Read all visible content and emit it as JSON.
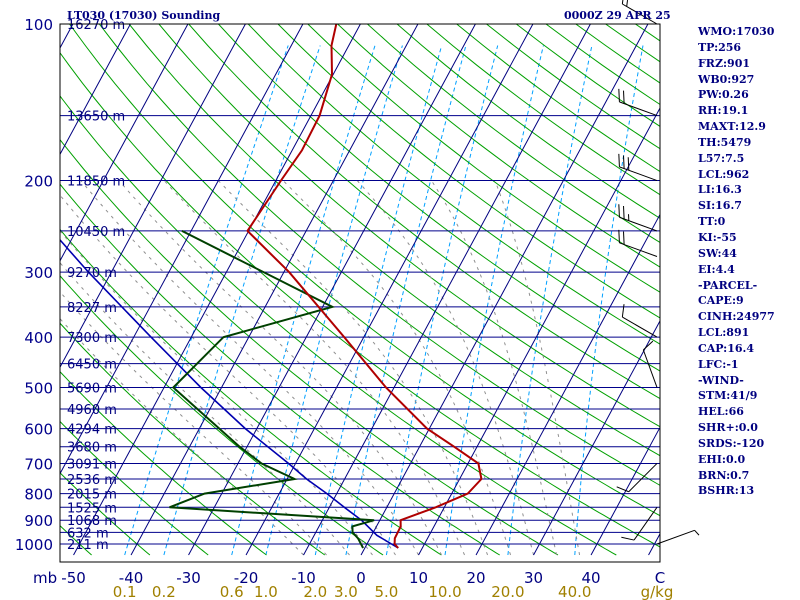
{
  "header": {
    "station": "LT030 (17030) Sounding",
    "time": "0000Z 29 APR 25"
  },
  "indices": [
    "WMO:17030",
    "TP:256",
    "FRZ:901",
    "WB0:927",
    "PW:0.26",
    "RH:19.1",
    "MAXT:12.9",
    "TH:5479",
    "L57:7.5",
    "LCL:962",
    "LI:16.3",
    "SI:16.7",
    "TT:0",
    "KI:-55",
    "SW:44",
    "EI:4.4",
    "-PARCEL-",
    "CAPE:9",
    "CINH:24977",
    "LCL:891",
    "CAP:16.4",
    "LFC:-1",
    "-WIND-",
    "STM:41/9",
    "HEL:66",
    "SHR+:0.0",
    "SRDS:-120",
    "EHI:0.0",
    "BRN:0.7",
    "BSHR:13"
  ],
  "colors": {
    "background": "#ffffff",
    "frame": "#000000",
    "isobar": "#00008b",
    "isotherm": "#000080",
    "dry_adiabat": "#00a000",
    "moist_adiabat": "#909090",
    "mixing_ratio": "#00a0ff",
    "temperature": "#b00000",
    "dewpoint": "#004000",
    "parcel": "#0000b0",
    "pressure_labels": "#00008b",
    "height_labels": "#000080",
    "temp_labels": "#000080",
    "mixing_labels": "#a08000",
    "wind_barbs": "#000000",
    "indices_text": "#000080"
  },
  "chart_data": {
    "type": "skew-t",
    "pressure_unit": "mb",
    "pressure_levels": [
      100,
      200,
      300,
      400,
      500,
      600,
      700,
      800,
      900,
      1000
    ],
    "pressure_range": [
      100,
      1050
    ],
    "temperature_ticks": [
      -50,
      -40,
      -30,
      -20,
      -10,
      0,
      10,
      20,
      30,
      40
    ],
    "temperature_end_label": "C",
    "mixing_ratio_unit": "g/kg",
    "mixing_ratio_ticks": [
      "0.1",
      "0.2",
      "0.6",
      "1.0",
      "2.0",
      "3.0",
      "5.0",
      "10.0",
      "20.0",
      "40.0"
    ],
    "height_labels": [
      {
        "p": 100,
        "label": "16270 m"
      },
      {
        "p": 150,
        "label": "13650 m"
      },
      {
        "p": 200,
        "label": "11850 m"
      },
      {
        "p": 250,
        "label": "10450 m"
      },
      {
        "p": 300,
        "label": "9270 m"
      },
      {
        "p": 350,
        "label": "8227 m"
      },
      {
        "p": 400,
        "label": "7300 m"
      },
      {
        "p": 450,
        "label": "6450 m"
      },
      {
        "p": 500,
        "label": "5690 m"
      },
      {
        "p": 550,
        "label": "4960 m"
      },
      {
        "p": 600,
        "label": "4294 m"
      },
      {
        "p": 650,
        "label": "3680 m"
      },
      {
        "p": 700,
        "label": "3091 m"
      },
      {
        "p": 750,
        "label": "2536 m"
      },
      {
        "p": 800,
        "label": "2015 m"
      },
      {
        "p": 850,
        "label": "1525 m"
      },
      {
        "p": 900,
        "label": "1068 m"
      },
      {
        "p": 950,
        "label": "632 m"
      },
      {
        "p": 1000,
        "label": "211 m"
      }
    ],
    "temperature_profile": [
      {
        "p": 1018,
        "t": 5.8
      },
      {
        "p": 1000,
        "t": 4.8
      },
      {
        "p": 975,
        "t": 4.3
      },
      {
        "p": 925,
        "t": 4.2
      },
      {
        "p": 900,
        "t": 3.6
      },
      {
        "p": 850,
        "t": 8.5
      },
      {
        "p": 800,
        "t": 12.8
      },
      {
        "p": 750,
        "t": 13.8
      },
      {
        "p": 700,
        "t": 11.8
      },
      {
        "p": 650,
        "t": 6.0
      },
      {
        "p": 600,
        "t": -0.4
      },
      {
        "p": 500,
        "t": -11.4
      },
      {
        "p": 400,
        "t": -23.4
      },
      {
        "p": 300,
        "t": -39.1
      },
      {
        "p": 250,
        "t": -50.2
      },
      {
        "p": 200,
        "t": -49.1
      },
      {
        "p": 175,
        "t": -48.3
      },
      {
        "p": 150,
        "t": -48.5
      },
      {
        "p": 125,
        "t": -50.2
      },
      {
        "p": 110,
        "t": -53.0
      },
      {
        "p": 100,
        "t": -54.2
      }
    ],
    "dewpoint_profile": [
      {
        "p": 1018,
        "t": -0.3
      },
      {
        "p": 975,
        "t": -2.1
      },
      {
        "p": 950,
        "t": -3.6
      },
      {
        "p": 925,
        "t": -4.2
      },
      {
        "p": 900,
        "t": -1.0
      },
      {
        "p": 850,
        "t": -37.8
      },
      {
        "p": 800,
        "t": -33.0
      },
      {
        "p": 750,
        "t": -18.7
      },
      {
        "p": 700,
        "t": -25.9
      },
      {
        "p": 650,
        "t": -31.3
      },
      {
        "p": 500,
        "t": -48.4
      },
      {
        "p": 400,
        "t": -44.4
      },
      {
        "p": 350,
        "t": -28.3
      },
      {
        "p": 250,
        "t": -61.6
      }
    ],
    "parcel_profile": [
      {
        "p": 1018,
        "t": 5.8
      },
      {
        "p": 962,
        "t": 0.9
      },
      {
        "p": 900,
        "t": -3.2
      },
      {
        "p": 850,
        "t": -7.4
      },
      {
        "p": 800,
        "t": -11.7
      },
      {
        "p": 750,
        "t": -16.6
      },
      {
        "p": 700,
        "t": -21.2
      },
      {
        "p": 600,
        "t": -32.0
      },
      {
        "p": 500,
        "t": -43.6
      },
      {
        "p": 400,
        "t": -57.0
      },
      {
        "p": 300,
        "t": -74.0
      },
      {
        "p": 250,
        "t": -84.2
      },
      {
        "p": 200,
        "t": -94.8
      },
      {
        "p": 150,
        "t": -109.5
      },
      {
        "p": 100,
        "t": -123.5
      }
    ],
    "winds": [
      {
        "p": 100,
        "dir": 300,
        "spd": 15
      },
      {
        "p": 150,
        "dir": 290,
        "spd": 20
      },
      {
        "p": 200,
        "dir": 290,
        "spd": 30
      },
      {
        "p": 250,
        "dir": 290,
        "spd": 25
      },
      {
        "p": 280,
        "dir": 290,
        "spd": 20
      },
      {
        "p": 400,
        "dir": 300,
        "spd": 10
      },
      {
        "p": 500,
        "dir": 340,
        "spd": 10
      },
      {
        "p": 700,
        "dir": 225,
        "spd": 10
      },
      {
        "p": 850,
        "dir": 215,
        "spd": 10
      },
      {
        "p": 1000,
        "dir": 70,
        "spd": 5
      }
    ]
  }
}
